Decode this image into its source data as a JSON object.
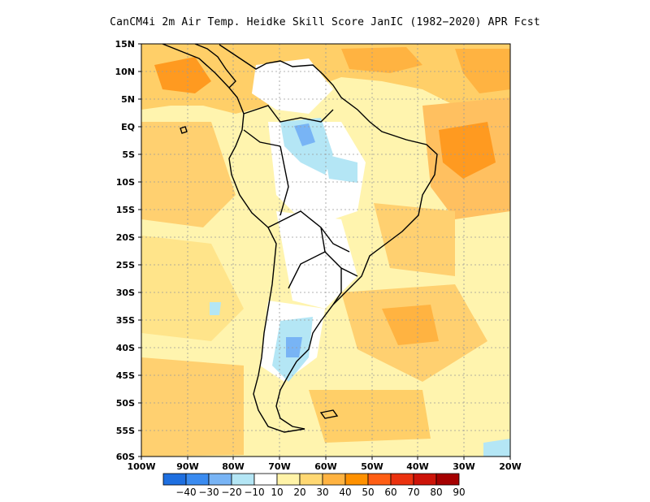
{
  "title": "CanCM4i  2m Air Temp. Heidke Skill Score JanIC (1982−2020) APR Fcst",
  "lat_labels": [
    "15N",
    "10N",
    "5N",
    "EQ",
    "5S",
    "10S",
    "15S",
    "20S",
    "25S",
    "30S",
    "35S",
    "40S",
    "45S",
    "50S",
    "55S",
    "60S"
  ],
  "lon_labels": [
    "100W",
    "90W",
    "80W",
    "70W",
    "60W",
    "50W",
    "40W",
    "30W",
    "20W"
  ],
  "colorbar": {
    "labels": [
      "−40",
      "−30",
      "−20",
      "−10",
      "10",
      "20",
      "30",
      "40",
      "50",
      "60",
      "70",
      "80",
      "90"
    ],
    "colors": [
      "#1e6fe0",
      "#3a8bf0",
      "#78b4f5",
      "#b4e6f5",
      "#ffffff",
      "#fff3a8",
      "#ffd873",
      "#ffb341",
      "#ff9100",
      "#ff5e14",
      "#eb320f",
      "#cd1409",
      "#a50000"
    ]
  },
  "colors": {
    "land_outline": "#000000",
    "grid": "#9a9a9a",
    "ocean_base": "#fff0a0"
  }
}
